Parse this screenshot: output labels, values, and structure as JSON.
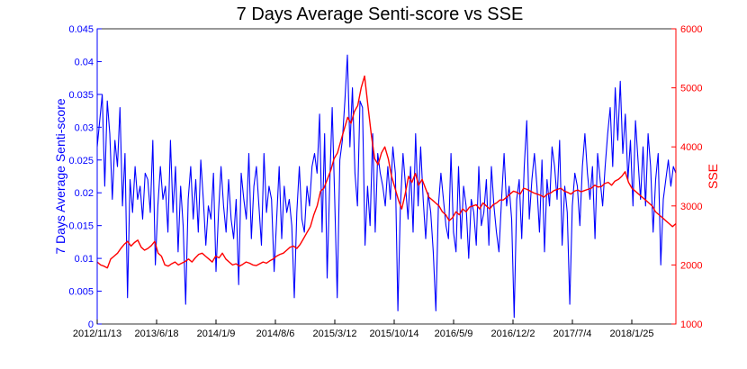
{
  "chart_data": {
    "type": "line",
    "title": "7 Days Average Senti-score vs SSE",
    "xlabel": "",
    "ylabel": "7 Days Average Senti-score",
    "ylabel_right": "SSE",
    "x_tick_labels": [
      "2012/11/13",
      "2013/6/18",
      "2014/1/9",
      "2014/8/6",
      "2015/3/12",
      "2015/10/14",
      "2016/5/9",
      "2016/12/2",
      "2017/7/4",
      "2018/1/25"
    ],
    "left_axis": {
      "ylim": [
        0,
        0.045
      ],
      "ticks": [
        "0",
        "0.005",
        "0.01",
        "0.015",
        "0.02",
        "0.025",
        "0.03",
        "0.035",
        "0.04",
        "0.045"
      ],
      "color": "#0000ff"
    },
    "right_axis": {
      "ylim": [
        1000,
        6000
      ],
      "ticks": [
        "1000",
        "2000",
        "3000",
        "4000",
        "5000",
        "6000"
      ],
      "color": "#ff0000"
    },
    "grid": false,
    "series": [
      {
        "axis": "left",
        "color": "#0000ff",
        "values": [
          0.027,
          0.031,
          0.035,
          0.021,
          0.034,
          0.029,
          0.019,
          0.028,
          0.024,
          0.033,
          0.018,
          0.026,
          0.004,
          0.022,
          0.017,
          0.024,
          0.019,
          0.021,
          0.016,
          0.023,
          0.022,
          0.017,
          0.028,
          0.009,
          0.018,
          0.024,
          0.019,
          0.021,
          0.014,
          0.028,
          0.017,
          0.024,
          0.011,
          0.021,
          0.015,
          0.003,
          0.019,
          0.024,
          0.016,
          0.022,
          0.014,
          0.025,
          0.019,
          0.012,
          0.018,
          0.016,
          0.023,
          0.008,
          0.017,
          0.024,
          0.018,
          0.014,
          0.022,
          0.016,
          0.013,
          0.019,
          0.006,
          0.023,
          0.019,
          0.016,
          0.026,
          0.013,
          0.021,
          0.024,
          0.018,
          0.012,
          0.026,
          0.017,
          0.021,
          0.019,
          0.008,
          0.016,
          0.024,
          0.013,
          0.021,
          0.017,
          0.019,
          0.015,
          0.004,
          0.017,
          0.024,
          0.016,
          0.014,
          0.021,
          0.018,
          0.024,
          0.026,
          0.023,
          0.032,
          0.014,
          0.029,
          0.007,
          0.021,
          0.033,
          0.019,
          0.004,
          0.025,
          0.028,
          0.034,
          0.041,
          0.027,
          0.036,
          0.023,
          0.018,
          0.034,
          0.033,
          0.012,
          0.021,
          0.015,
          0.029,
          0.014,
          0.026,
          0.023,
          0.021,
          0.018,
          0.024,
          0.019,
          0.027,
          0.023,
          0.002,
          0.018,
          0.026,
          0.021,
          0.016,
          0.024,
          0.014,
          0.029,
          0.018,
          0.027,
          0.019,
          0.013,
          0.02,
          0.017,
          0.011,
          0.002,
          0.018,
          0.023,
          0.019,
          0.015,
          0.013,
          0.026,
          0.014,
          0.011,
          0.024,
          0.013,
          0.021,
          0.018,
          0.01,
          0.019,
          0.017,
          0.012,
          0.024,
          0.015,
          0.017,
          0.022,
          0.012,
          0.024,
          0.018,
          0.014,
          0.011,
          0.019,
          0.026,
          0.018,
          0.021,
          0.016,
          0.001,
          0.019,
          0.022,
          0.013,
          0.024,
          0.031,
          0.016,
          0.022,
          0.026,
          0.021,
          0.014,
          0.025,
          0.011,
          0.022,
          0.018,
          0.027,
          0.024,
          0.019,
          0.028,
          0.012,
          0.021,
          0.017,
          0.003,
          0.018,
          0.023,
          0.021,
          0.015,
          0.024,
          0.029,
          0.023,
          0.019,
          0.024,
          0.013,
          0.026,
          0.022,
          0.018,
          0.024,
          0.029,
          0.033,
          0.024,
          0.036,
          0.028,
          0.037,
          0.026,
          0.032,
          0.022,
          0.028,
          0.018,
          0.031,
          0.025,
          0.019,
          0.027,
          0.018,
          0.029,
          0.024,
          0.014,
          0.022,
          0.026,
          0.009,
          0.019,
          0.022,
          0.025,
          0.021,
          0.024,
          0.023
        ]
      },
      {
        "axis": "right",
        "color": "#ff0000",
        "values": [
          2050,
          2000,
          1980,
          1950,
          2100,
          2150,
          2200,
          2280,
          2350,
          2400,
          2320,
          2380,
          2420,
          2300,
          2250,
          2280,
          2330,
          2400,
          2200,
          2150,
          2000,
          1980,
          2020,
          2050,
          2000,
          2030,
          2060,
          2100,
          2050,
          2120,
          2180,
          2200,
          2150,
          2100,
          2050,
          2150,
          2120,
          2200,
          2100,
          2050,
          2000,
          2020,
          1980,
          2010,
          2050,
          2030,
          2000,
          1990,
          2020,
          2050,
          2030,
          2070,
          2100,
          2150,
          2180,
          2200,
          2250,
          2300,
          2320,
          2280,
          2350,
          2450,
          2550,
          2650,
          2850,
          3000,
          3250,
          3300,
          3450,
          3600,
          3800,
          3900,
          4100,
          4300,
          4500,
          4400,
          4600,
          4700,
          5000,
          5200,
          4700,
          4200,
          3800,
          3700,
          3900,
          4000,
          3800,
          3500,
          3300,
          3100,
          2950,
          3200,
          3500,
          3400,
          3550,
          3350,
          3450,
          3300,
          3150,
          3100,
          3050,
          3000,
          2900,
          2850,
          2750,
          2800,
          2900,
          2850,
          2950,
          2900,
          2980,
          3000,
          3020,
          2950,
          3050,
          3000,
          2950,
          3020,
          3050,
          3100,
          3100,
          3150,
          3200,
          3250,
          3230,
          3200,
          3300,
          3280,
          3250,
          3220,
          3200,
          3180,
          3150,
          3200,
          3220,
          3260,
          3280,
          3300,
          3250,
          3230,
          3200,
          3250,
          3270,
          3240,
          3260,
          3280,
          3300,
          3350,
          3320,
          3330,
          3380,
          3400,
          3350,
          3420,
          3450,
          3500,
          3580,
          3400,
          3300,
          3250,
          3200,
          3150,
          3100,
          3050,
          3000,
          2900,
          2850,
          2800,
          2750,
          2700,
          2650,
          2700
        ]
      }
    ]
  }
}
